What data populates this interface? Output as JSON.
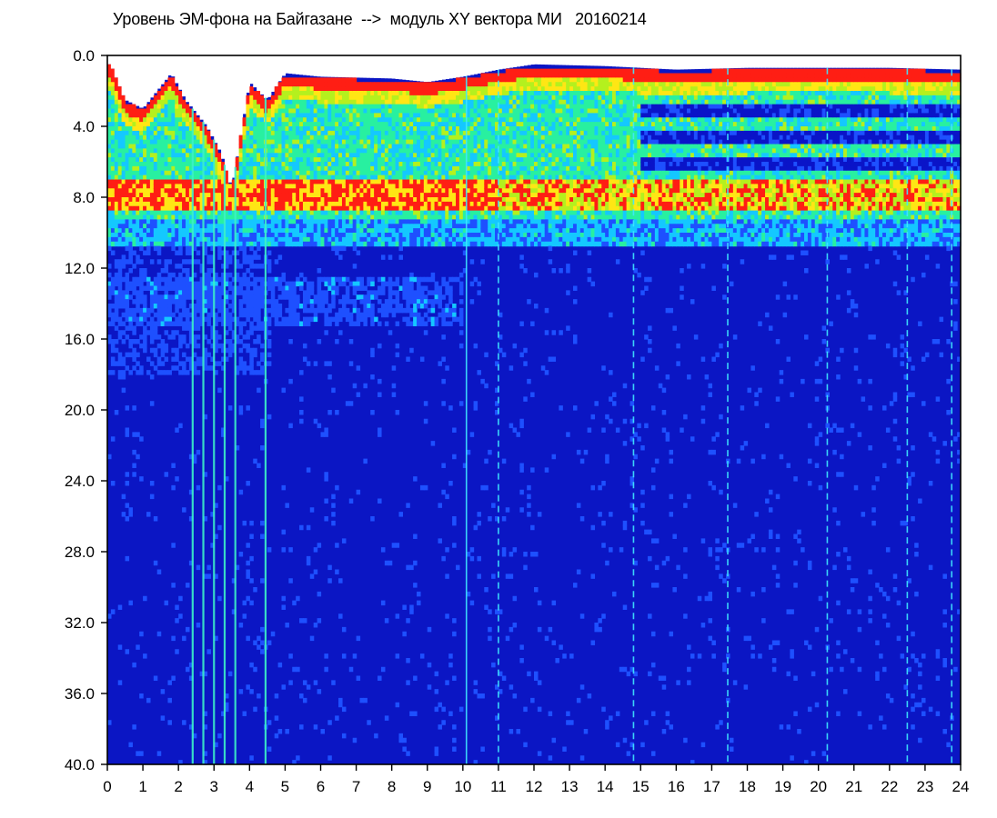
{
  "chart_data": {
    "type": "heatmap",
    "title": "Уровень ЭМ-фона на Байгазане  -->  модуль XY вектора МИ   20160214",
    "xlabel": "",
    "ylabel": "",
    "xlim": [
      0,
      24
    ],
    "ylim": [
      0,
      40
    ],
    "y_axis_inverted": true,
    "x_ticks": [
      "0",
      "1",
      "2",
      "3",
      "4",
      "5",
      "6",
      "7",
      "8",
      "9",
      "10",
      "11",
      "12",
      "13",
      "14",
      "15",
      "16",
      "17",
      "18",
      "19",
      "20",
      "21",
      "22",
      "23",
      "24"
    ],
    "y_ticks": [
      "0.0",
      "4.0",
      "8.0",
      "12.0",
      "16.0",
      "20.0",
      "24.0",
      "28.0",
      "32.0",
      "36.0",
      "40.0"
    ],
    "colorscale": [
      "#0a14c8",
      "#1e50ff",
      "#14c8ff",
      "#28f0a0",
      "#b4f01e",
      "#ffe614",
      "#ff1e14"
    ],
    "grid": false,
    "legend": "none",
    "upper_band_top": {
      "hours": [
        0.1,
        0.5,
        1.0,
        1.8,
        2.2,
        2.8,
        3.2,
        3.5,
        4.0,
        4.5,
        5.0,
        6.0,
        8.0,
        9.0,
        10.0,
        11.0,
        12.0,
        14.0,
        16.0,
        18.0,
        20.0,
        22.0,
        24.0
      ],
      "top_mhz": [
        0.5,
        2.5,
        3.0,
        1.0,
        2.5,
        4.0,
        5.5,
        7.5,
        1.5,
        2.5,
        1.0,
        1.2,
        1.3,
        1.5,
        1.2,
        0.8,
        0.5,
        0.6,
        0.8,
        0.7,
        0.7,
        0.7,
        0.8
      ]
    },
    "band_edge_lower_mhz": 9.0,
    "red_band_mhz": [
      7.0,
      8.5
    ],
    "secondary_band_mhz": [
      12.5,
      15.0
    ],
    "deep_blue_bands": {
      "start_hour": 15.0,
      "center_mhz": [
        3.0,
        4.5,
        6.0
      ]
    },
    "bright_vertical_lines_hours": [
      2.4,
      2.7,
      3.0,
      3.3,
      3.6,
      4.45,
      10.1,
      11.0,
      14.8,
      17.45,
      20.25,
      22.5,
      23.75
    ]
  }
}
